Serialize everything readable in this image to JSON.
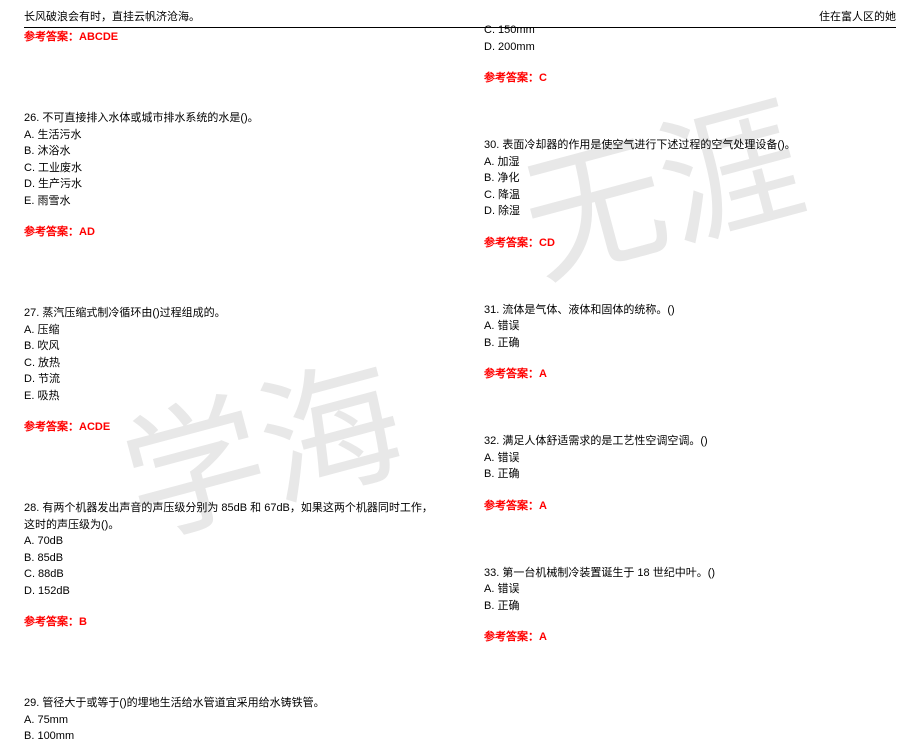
{
  "header": {
    "left": "长风破浪会有时，直挂云帆济沧海。",
    "right": "住在富人区的她"
  },
  "watermark": {
    "char1": "学",
    "char2": "海",
    "char3": "无",
    "char4": "涯"
  },
  "answers_label": "参考答案：",
  "left": {
    "a_prev": "ABCDE",
    "q26": {
      "text": "26. 不可直接排入水体或城市排水系统的水是()。",
      "opts": [
        "A. 生活污水",
        "B. 沐浴水",
        "C. 工业废水",
        "D. 生产污水",
        "E. 雨雪水"
      ],
      "ans": "AD"
    },
    "q27": {
      "text": "27. 蒸汽压缩式制冷循环由()过程组成的。",
      "opts": [
        "A. 压缩",
        "B. 吹风",
        "C. 放热",
        "D. 节流",
        "E. 吸热"
      ],
      "ans": "ACDE"
    },
    "q28": {
      "text": "28. 有两个机器发出声音的声压级分别为 85dB 和 67dB，如果这两个机器同时工作，这时的声压级为()。",
      "opts": [
        "A. 70dB",
        "B. 85dB",
        "C. 88dB",
        "D. 152dB"
      ],
      "ans": "B"
    },
    "q29": {
      "text": "29. 管径大于或等于()的埋地生活给水管道宜采用给水铸铁管。",
      "opts": [
        "A. 75mm",
        "B. 100mm"
      ]
    }
  },
  "right": {
    "q29b": {
      "opts": [
        "C. 150mm",
        "D. 200mm"
      ],
      "ans": "C"
    },
    "q30": {
      "text": "30. 表面冷却器的作用是使空气进行下述过程的空气处理设备()。",
      "opts": [
        "A. 加湿",
        "B. 净化",
        "C. 降温",
        "D. 除湿"
      ],
      "ans": "CD"
    },
    "q31": {
      "text": "31. 流体是气体、液体和固体的统称。()",
      "opts": [
        "A. 错误",
        "B. 正确"
      ],
      "ans": "A"
    },
    "q32": {
      "text": "32. 满足人体舒适需求的是工艺性空调空调。()",
      "opts": [
        "A. 错误",
        "B. 正确"
      ],
      "ans": "A"
    },
    "q33": {
      "text": "33. 第一台机械制冷装置诞生于 18 世纪中叶。()",
      "opts": [
        "A. 错误",
        "B. 正确"
      ],
      "ans": "A"
    }
  }
}
